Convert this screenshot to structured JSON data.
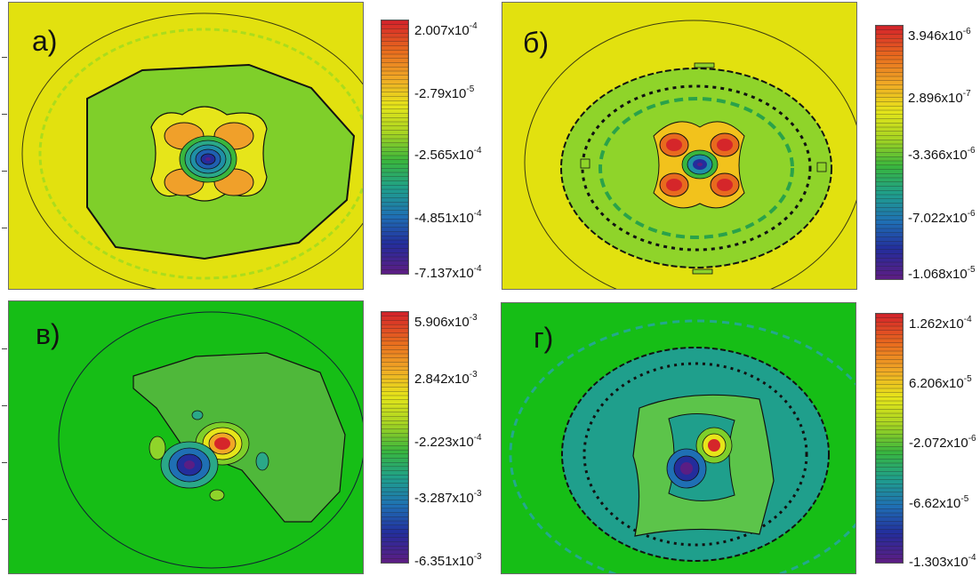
{
  "panels": [
    {
      "letter": "а)",
      "background": "#e2e10f",
      "colorbar": {
        "colors": [
          "#5a1e84",
          "#232d9c",
          "#1f6fb4",
          "#1f9f8c",
          "#39b63d",
          "#a7d422",
          "#e6e51a",
          "#f0a825",
          "#e86a1e",
          "#d5262a"
        ],
        "labels": [
          {
            "mantissa": "2.007x10",
            "exp": "-4"
          },
          {
            "mantissa": "-2.79x10",
            "exp": "-5"
          },
          {
            "mantissa": "-2.565x10",
            "exp": "-4"
          },
          {
            "mantissa": "-4.851x10",
            "exp": "-4"
          },
          {
            "mantissa": "-7.137x10",
            "exp": "-4"
          }
        ]
      }
    },
    {
      "letter": "б)",
      "background": "#e2e10f",
      "colorbar": {
        "colors": [
          "#5a1e84",
          "#232d9c",
          "#1f6fb4",
          "#1f9f8c",
          "#39b63d",
          "#a7d422",
          "#e6e51a",
          "#f0a825",
          "#e86a1e",
          "#d5262a"
        ],
        "labels": [
          {
            "mantissa": "3.946x10",
            "exp": "-6"
          },
          {
            "mantissa": "2.896x10",
            "exp": "-7"
          },
          {
            "mantissa": "-3.366x10",
            "exp": "-6"
          },
          {
            "mantissa": "-7.022x10",
            "exp": "-6"
          },
          {
            "mantissa": "-1.068x10",
            "exp": "-5"
          }
        ]
      }
    },
    {
      "letter": "в)",
      "background": "#16be16",
      "colorbar": {
        "colors": [
          "#5a1e84",
          "#232d9c",
          "#1f6fb4",
          "#1f9f8c",
          "#39b63d",
          "#a7d422",
          "#e6e51a",
          "#f0a825",
          "#e86a1e",
          "#d5262a"
        ],
        "labels": [
          {
            "mantissa": "5.906x10",
            "exp": "-3"
          },
          {
            "mantissa": "2.842x10",
            "exp": "-3"
          },
          {
            "mantissa": "-2.223x10",
            "exp": "-4"
          },
          {
            "mantissa": "-3.287x10",
            "exp": "-3"
          },
          {
            "mantissa": "-6.351x10",
            "exp": "-3"
          }
        ]
      }
    },
    {
      "letter": "г)",
      "background": "#16be16",
      "colorbar": {
        "colors": [
          "#5a1e84",
          "#232d9c",
          "#1f6fb4",
          "#1f9f8c",
          "#39b63d",
          "#a7d422",
          "#e6e51a",
          "#f0a825",
          "#e86a1e",
          "#d5262a"
        ],
        "labels": [
          {
            "mantissa": "1.262x10",
            "exp": "-4"
          },
          {
            "mantissa": "6.206x10",
            "exp": "-5"
          },
          {
            "mantissa": "-2.072x10",
            "exp": "-6"
          },
          {
            "mantissa": "-6.62x10",
            "exp": "-5"
          },
          {
            "mantissa": "-1.303x10",
            "exp": "-4"
          }
        ]
      }
    }
  ],
  "chart_data": [
    {
      "type": "heatmap",
      "title": "а)",
      "colorbar_ticks": [
        0.0002007,
        -2.79e-05,
        -0.0002565,
        -0.0004851,
        -0.0007137
      ]
    },
    {
      "type": "heatmap",
      "title": "б)",
      "colorbar_ticks": [
        3.946e-06,
        2.896e-07,
        -3.366e-06,
        -7.022e-06,
        -1.068e-05
      ]
    },
    {
      "type": "heatmap",
      "title": "в)",
      "colorbar_ticks": [
        0.005906,
        0.002842,
        -0.0002223,
        -0.003287,
        -0.006351
      ]
    },
    {
      "type": "heatmap",
      "title": "г)",
      "colorbar_ticks": [
        0.0001262,
        6.206e-05,
        -2.072e-06,
        -6.62e-05,
        -0.0001303
      ]
    }
  ]
}
